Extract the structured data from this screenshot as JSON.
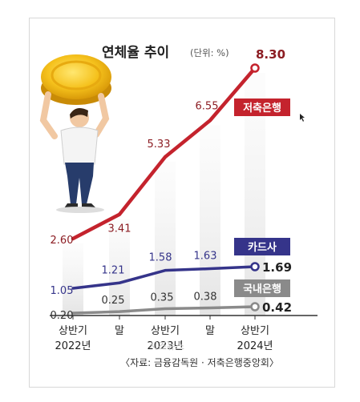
{
  "chart_data": {
    "type": "line",
    "title": "연체율 추이",
    "unit_note": "(단위: %)",
    "categories": [
      {
        "line1": "상반기",
        "line2": "2022년"
      },
      {
        "line1": "말",
        "line2": ""
      },
      {
        "line1": "상반기",
        "line2": "2023년"
      },
      {
        "line1": "말",
        "line2": ""
      },
      {
        "line1": "상반기",
        "line2": "2024년"
      }
    ],
    "series": [
      {
        "name": "저축은행",
        "color": "#c4232d",
        "values": [
          2.6,
          3.41,
          5.33,
          6.55,
          8.3
        ],
        "labels": [
          "2.60",
          "3.41",
          "5.33",
          "6.55",
          "8.30"
        ]
      },
      {
        "name": "카드사",
        "color": "#35348a",
        "values": [
          1.05,
          1.21,
          1.58,
          1.63,
          1.69
        ],
        "labels": [
          "1.05",
          "1.21",
          "1.58",
          "1.63",
          "1.69"
        ]
      },
      {
        "name": "국내은행",
        "color": "#8a8a8a",
        "values": [
          0.2,
          0.25,
          0.35,
          0.38,
          0.42
        ],
        "labels": [
          "0.20",
          "0.25",
          "0.35",
          "0.38",
          "0.42"
        ]
      }
    ],
    "source": "〈자료: 금융감독원 · 저축은행중앙회〉",
    "grid": false,
    "legend": "inline-labels",
    "illustration": "person-lifting-gold-coin"
  },
  "watermark": "시즈뉴스"
}
